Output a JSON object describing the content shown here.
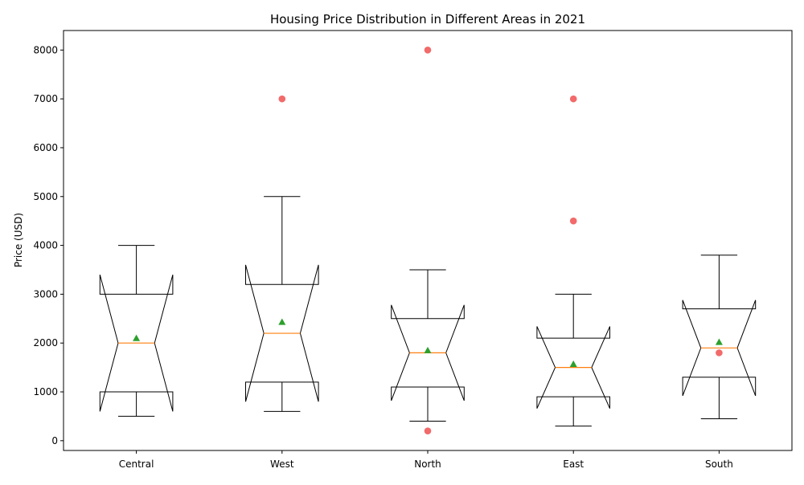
{
  "chart_data": {
    "type": "box",
    "title": "Housing Price Distribution in Different Areas in 2021",
    "xlabel": "",
    "ylabel": "Price (USD)",
    "ylim": [
      -200,
      8400
    ],
    "yticks": [
      0,
      1000,
      2000,
      3000,
      4000,
      5000,
      6000,
      7000,
      8000
    ],
    "grid": false,
    "notched": true,
    "categories": [
      "Central",
      "West",
      "North",
      "East",
      "South"
    ],
    "boxes": [
      {
        "category": "Central",
        "whisker_low": 500,
        "q1": 1000,
        "median": 2000,
        "q3": 3000,
        "whisker_high": 4000,
        "notch_low": 600,
        "notch_high": 3400,
        "mean": 2100,
        "outliers": []
      },
      {
        "category": "West",
        "whisker_low": 600,
        "q1": 1200,
        "median": 2200,
        "q3": 3200,
        "whisker_high": 5000,
        "notch_low": 800,
        "notch_high": 3600,
        "mean": 2430,
        "outliers": [
          7000
        ]
      },
      {
        "category": "North",
        "whisker_low": 400,
        "q1": 1100,
        "median": 1800,
        "q3": 2500,
        "whisker_high": 3500,
        "notch_low": 820,
        "notch_high": 2780,
        "mean": 1850,
        "outliers": [
          200,
          8000
        ]
      },
      {
        "category": "East",
        "whisker_low": 300,
        "q1": 900,
        "median": 1500,
        "q3": 2100,
        "whisker_high": 3000,
        "notch_low": 660,
        "notch_high": 2340,
        "mean": 1570,
        "outliers": [
          4500,
          7000
        ]
      },
      {
        "category": "South",
        "whisker_low": 450,
        "q1": 1300,
        "median": 1900,
        "q3": 2700,
        "whisker_high": 3800,
        "notch_low": 920,
        "notch_high": 2880,
        "mean": 2020,
        "outliers": [
          1800
        ]
      }
    ],
    "colors": {
      "box": "#000000",
      "median": "#ff7f0e",
      "mean": "#2ca02c",
      "outlier": "#f15a5a"
    }
  }
}
